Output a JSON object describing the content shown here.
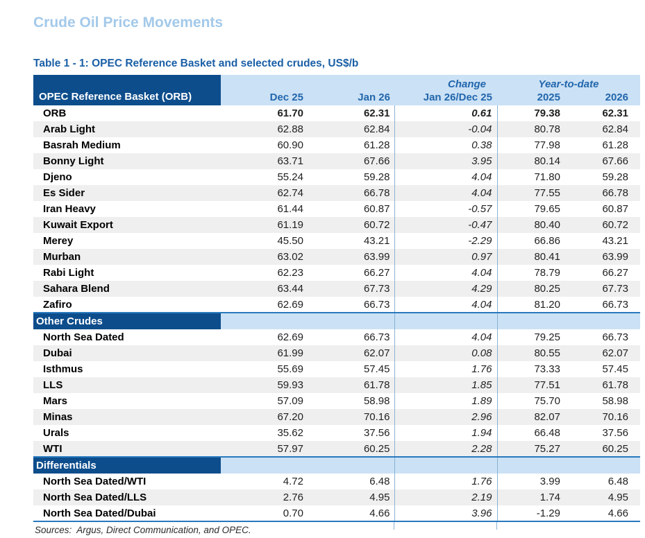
{
  "title": "Crude Oil Price Movements",
  "table": {
    "caption": "Table 1 - 1: OPEC Reference Basket and selected crudes, US$/b",
    "corner_label": "OPEC Reference Basket (ORB)",
    "group_headers": {
      "change": "Change",
      "ytd": "Year-to-date"
    },
    "columns": [
      "Dec 25",
      "Jan 26",
      "Jan 26/Dec 25",
      "2025",
      "2026"
    ],
    "sections": [
      {
        "header": null,
        "rows": [
          {
            "label": "ORB",
            "values": [
              "61.70",
              "62.31",
              "0.61",
              "79.38",
              "62.31"
            ],
            "bold": true
          },
          {
            "label": "Arab Light",
            "values": [
              "62.88",
              "62.84",
              "-0.04",
              "80.78",
              "62.84"
            ]
          },
          {
            "label": "Basrah Medium",
            "values": [
              "60.90",
              "61.28",
              "0.38",
              "77.98",
              "61.28"
            ]
          },
          {
            "label": "Bonny Light",
            "values": [
              "63.71",
              "67.66",
              "3.95",
              "80.14",
              "67.66"
            ]
          },
          {
            "label": "Djeno",
            "values": [
              "55.24",
              "59.28",
              "4.04",
              "71.80",
              "59.28"
            ]
          },
          {
            "label": "Es Sider",
            "values": [
              "62.74",
              "66.78",
              "4.04",
              "77.55",
              "66.78"
            ]
          },
          {
            "label": "Iran Heavy",
            "values": [
              "61.44",
              "60.87",
              "-0.57",
              "79.65",
              "60.87"
            ]
          },
          {
            "label": "Kuwait Export",
            "values": [
              "61.19",
              "60.72",
              "-0.47",
              "80.40",
              "60.72"
            ]
          },
          {
            "label": "Merey",
            "values": [
              "45.50",
              "43.21",
              "-2.29",
              "66.86",
              "43.21"
            ]
          },
          {
            "label": "Murban",
            "values": [
              "63.02",
              "63.99",
              "0.97",
              "80.41",
              "63.99"
            ]
          },
          {
            "label": "Rabi Light",
            "values": [
              "62.23",
              "66.27",
              "4.04",
              "78.79",
              "66.27"
            ]
          },
          {
            "label": "Sahara Blend",
            "values": [
              "63.44",
              "67.73",
              "4.29",
              "80.25",
              "67.73"
            ]
          },
          {
            "label": "Zafiro",
            "values": [
              "62.69",
              "66.73",
              "4.04",
              "81.20",
              "66.73"
            ]
          }
        ]
      },
      {
        "header": "Other Crudes",
        "rows": [
          {
            "label": "North Sea Dated",
            "values": [
              "62.69",
              "66.73",
              "4.04",
              "79.25",
              "66.73"
            ]
          },
          {
            "label": "Dubai",
            "values": [
              "61.99",
              "62.07",
              "0.08",
              "80.55",
              "62.07"
            ]
          },
          {
            "label": "Isthmus",
            "values": [
              "55.69",
              "57.45",
              "1.76",
              "73.33",
              "57.45"
            ]
          },
          {
            "label": "LLS",
            "values": [
              "59.93",
              "61.78",
              "1.85",
              "77.51",
              "61.78"
            ]
          },
          {
            "label": "Mars",
            "values": [
              "57.09",
              "58.98",
              "1.89",
              "75.70",
              "58.98"
            ]
          },
          {
            "label": "Minas",
            "values": [
              "67.20",
              "70.16",
              "2.96",
              "82.07",
              "70.16"
            ]
          },
          {
            "label": "Urals",
            "values": [
              "35.62",
              "37.56",
              "1.94",
              "66.48",
              "37.56"
            ]
          },
          {
            "label": "WTI",
            "values": [
              "57.97",
              "60.25",
              "2.28",
              "75.27",
              "60.25"
            ]
          }
        ]
      },
      {
        "header": "Differentials",
        "rows": [
          {
            "label": "North Sea Dated/WTI",
            "values": [
              "4.72",
              "6.48",
              "1.76",
              "3.99",
              "6.48"
            ]
          },
          {
            "label": "North Sea Dated/LLS",
            "values": [
              "2.76",
              "4.95",
              "2.19",
              "1.74",
              "4.95"
            ]
          },
          {
            "label": "North Sea Dated/Dubai",
            "values": [
              "0.70",
              "4.66",
              "3.96",
              "-1.29",
              "4.66"
            ]
          }
        ]
      }
    ],
    "sources": "Sources:  Argus, Direct Communication, and OPEC."
  },
  "colors": {
    "dark_blue": "#0d4d8c",
    "light_blue": "#cbe1f5",
    "header_text": "#2166ac",
    "caption_blue": "#1a5fa6",
    "title_blue": "#a3c9ea",
    "stripe_gray": "#efefef",
    "rule_blue": "#2879bd",
    "grid_blue": "#8ab2d4",
    "data_text": "#1f1f1f"
  }
}
